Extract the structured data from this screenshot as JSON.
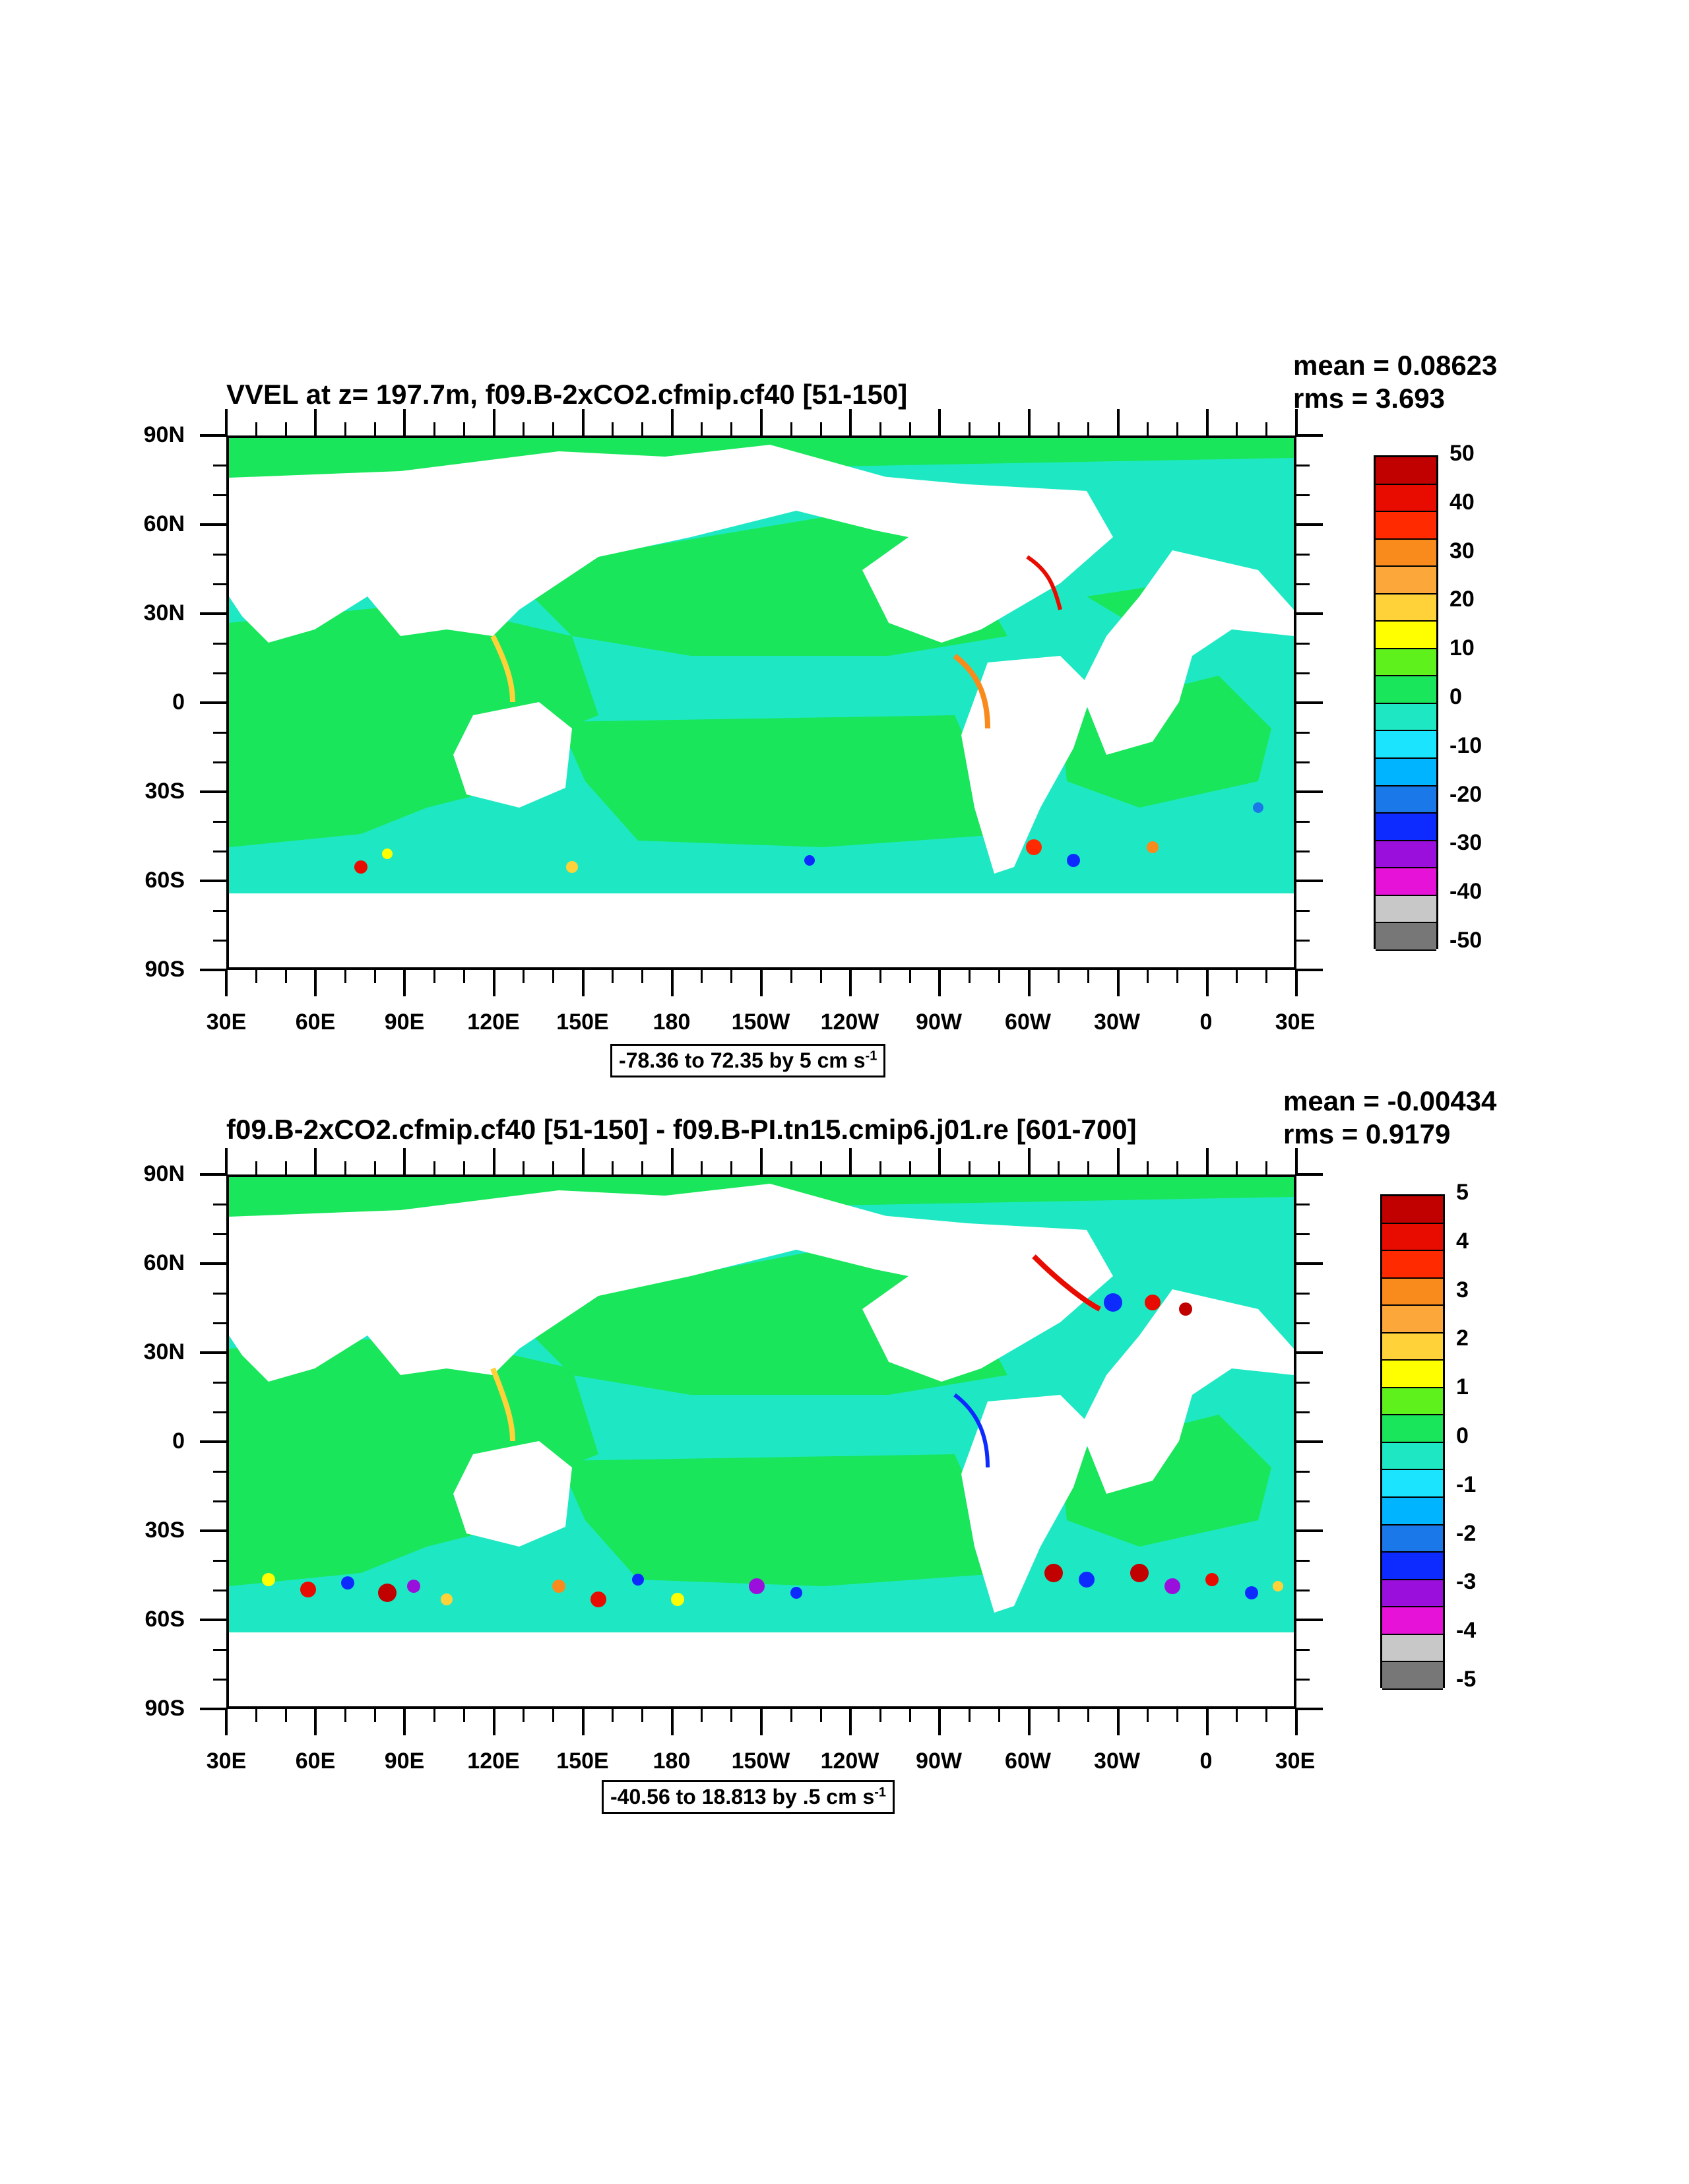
{
  "panels": [
    {
      "title": "VVEL at z= 197.7m, f09.B-2xCO2.cfmip.cf40 [51-150]",
      "mean": "mean = 0.08623",
      "rms": "rms = 3.693",
      "range_text": "-78.36 to 72.35 by 5 cm s",
      "range_sup": "-1",
      "colorbar_labels": [
        "50",
        "40",
        "30",
        "20",
        "10",
        "0",
        "-10",
        "-20",
        "-30",
        "-40",
        "-50"
      ]
    },
    {
      "title": "f09.B-2xCO2.cfmip.cf40 [51-150] - f09.B-PI.tn15.cmip6.j01.re [601-700]",
      "mean": "mean = -0.00434",
      "rms": "rms = 0.9179",
      "range_text": "-40.56 to 18.813 by .5 cm s",
      "range_sup": "-1",
      "colorbar_labels": [
        "5",
        "4",
        "3",
        "2",
        "1",
        "0",
        "-1",
        "-2",
        "-3",
        "-4",
        "-5"
      ]
    }
  ],
  "lat_labels": [
    "90N",
    "60N",
    "30N",
    "0",
    "30S",
    "60S",
    "90S"
  ],
  "lon_labels": [
    "30E",
    "60E",
    "90E",
    "120E",
    "150E",
    "180",
    "150W",
    "120W",
    "90W",
    "60W",
    "30W",
    "0",
    "30E"
  ],
  "colorbar_colors": [
    "#c10000",
    "#e80b00",
    "#ff2a00",
    "#f98a1c",
    "#fba73a",
    "#ffd23a",
    "#ffff00",
    "#5ef11b",
    "#19e65b",
    "#1ee8c3",
    "#1be4ff",
    "#00b4ff",
    "#1b78e8",
    "#0d2aff",
    "#9b0fdc",
    "#e612d8",
    "#c8c8c8",
    "#777777"
  ],
  "ocean_colors": {
    "green": "#19e65b",
    "cyan": "#1ee8c3",
    "yellow": "#ffff00",
    "orange": "#fba73a",
    "red": "#e80b00",
    "blue": "#0d2aff",
    "lightblue": "#1be4ff",
    "purple": "#9b0fdc",
    "land": "#ffffff"
  }
}
